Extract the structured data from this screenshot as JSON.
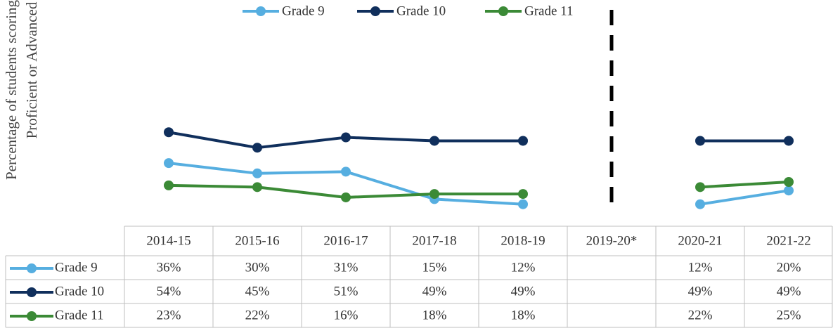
{
  "chart_data": {
    "type": "line",
    "y_label": [
      "Percentage of students scoring",
      "Proficient or Advanced"
    ],
    "categories": [
      "2014-15",
      "2015-16",
      "2016-17",
      "2017-18",
      "2018-19",
      "2019-20*",
      "2020-21",
      "2021-22"
    ],
    "series": [
      {
        "name": "Grade 9",
        "color": "#56aee0",
        "values": [
          36,
          30,
          31,
          15,
          12,
          null,
          12,
          20
        ],
        "value_labels": [
          "36%",
          "30%",
          "31%",
          "15%",
          "12%",
          null,
          "12%",
          "20%"
        ]
      },
      {
        "name": "Grade 10",
        "color": "#102f5c",
        "values": [
          54,
          45,
          51,
          49,
          49,
          null,
          49,
          49
        ],
        "value_labels": [
          "54%",
          "45%",
          "51%",
          "49%",
          "49%",
          null,
          "49%",
          "49%"
        ]
      },
      {
        "name": "Grade 11",
        "color": "#3b8a36",
        "values": [
          23,
          22,
          16,
          18,
          18,
          null,
          22,
          25
        ],
        "value_labels": [
          "23%",
          "22%",
          "16%",
          "18%",
          "18%",
          null,
          "22%",
          "25%"
        ]
      }
    ],
    "legend": "top"
  }
}
